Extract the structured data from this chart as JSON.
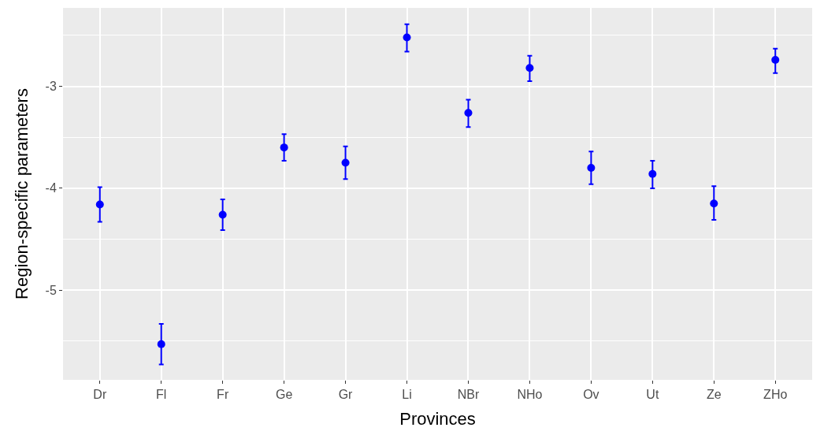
{
  "chart_data": {
    "type": "scatter",
    "xlabel": "Provinces",
    "ylabel": "Region-specific parameters",
    "categories": [
      "Dr",
      "Fl",
      "Fr",
      "Ge",
      "Gr",
      "Li",
      "NBr",
      "NHo",
      "Ov",
      "Ut",
      "Ze",
      "ZHo"
    ],
    "series": [
      {
        "color": "#0000ff",
        "values": [
          -4.16,
          -5.53,
          -4.26,
          -3.6,
          -3.75,
          -2.52,
          -3.26,
          -2.82,
          -3.8,
          -3.86,
          -4.15,
          -2.74
        ],
        "errors": [
          [
            -4.33,
            -3.99
          ],
          [
            -5.73,
            -5.33
          ],
          [
            -4.41,
            -4.11
          ],
          [
            -3.73,
            -3.47
          ],
          [
            -3.91,
            -3.59
          ],
          [
            -2.66,
            -2.39
          ],
          [
            -3.4,
            -3.13
          ],
          [
            -2.95,
            -2.7
          ],
          [
            -3.96,
            -3.64
          ],
          [
            -4.0,
            -3.73
          ],
          [
            -4.31,
            -3.98
          ],
          [
            -2.87,
            -2.63
          ]
        ]
      }
    ],
    "ylim": [
      -5.88,
      -2.23
    ],
    "yticks": [
      -5,
      -4,
      -3
    ],
    "grid": true,
    "marker": "circle"
  }
}
